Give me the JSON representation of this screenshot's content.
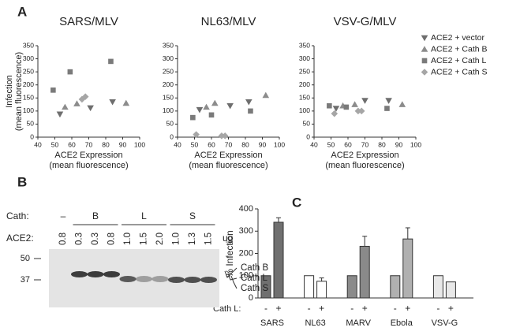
{
  "panel_labels": [
    "A",
    "B",
    "C"
  ],
  "chart_data": [
    {
      "type": "scatter",
      "title": "SARS/MLV",
      "ylabel": [
        "Infection",
        "(mean fluorescence)"
      ],
      "xlabel": [
        "ACE2 Expression",
        "(mean fluorescence)"
      ],
      "xlim": [
        40,
        100
      ],
      "xticks": [
        40,
        50,
        60,
        70,
        80,
        90,
        100
      ],
      "ylim": [
        0,
        350
      ],
      "yticks": [
        0,
        50,
        100,
        150,
        200,
        250,
        300,
        350
      ],
      "series": [
        {
          "name": "ACE2 + vector",
          "marker": "triangle-down",
          "color": "#6e6e6e",
          "x": [
            53,
            71,
            84
          ],
          "y": [
            88,
            112,
            135
          ]
        },
        {
          "name": "ACE2 + Cath B",
          "marker": "triangle-up",
          "color": "#8c8c8c",
          "x": [
            56,
            63,
            92
          ],
          "y": [
            115,
            128,
            130
          ]
        },
        {
          "name": "ACE2 + Cath L",
          "marker": "square",
          "color": "#7a7a7a",
          "x": [
            49,
            59,
            83
          ],
          "y": [
            180,
            250,
            290
          ]
        },
        {
          "name": "ACE2 + Cath S",
          "marker": "diamond",
          "color": "#a6a6a6",
          "x": [
            66,
            68
          ],
          "y": [
            145,
            155
          ]
        }
      ]
    },
    {
      "type": "scatter",
      "title": "NL63/MLV",
      "xlabel": [
        "ACE2 Expression",
        "(mean fluorescence)"
      ],
      "xlim": [
        40,
        100
      ],
      "xticks": [
        40,
        50,
        60,
        70,
        80,
        90,
        100
      ],
      "ylim": [
        0,
        350
      ],
      "yticks": [
        0,
        50,
        100,
        150,
        200,
        250,
        300,
        350
      ],
      "series": [
        {
          "name": "ACE2 + vector",
          "marker": "triangle-down",
          "color": "#6e6e6e",
          "x": [
            53,
            71,
            82
          ],
          "y": [
            105,
            120,
            135
          ]
        },
        {
          "name": "ACE2 + Cath B",
          "marker": "triangle-up",
          "color": "#8c8c8c",
          "x": [
            57,
            62,
            92
          ],
          "y": [
            115,
            130,
            160
          ]
        },
        {
          "name": "ACE2 + Cath L",
          "marker": "square",
          "color": "#7a7a7a",
          "x": [
            49,
            60,
            83
          ],
          "y": [
            75,
            85,
            100
          ]
        },
        {
          "name": "ACE2 + Cath S",
          "marker": "diamond",
          "color": "#a6a6a6",
          "x": [
            51,
            66,
            68
          ],
          "y": [
            10,
            5,
            5
          ]
        }
      ]
    },
    {
      "type": "scatter",
      "title": "VSV-G/MLV",
      "xlabel": [
        "ACE2 Expression",
        "(mean fluorescence)"
      ],
      "legend": "right",
      "xlim": [
        40,
        100
      ],
      "xticks": [
        40,
        50,
        60,
        70,
        80,
        90,
        100
      ],
      "ylim": [
        0,
        350
      ],
      "yticks": [
        0,
        50,
        100,
        150,
        200,
        250,
        300,
        350
      ],
      "series": [
        {
          "name": "ACE2 + vector",
          "marker": "triangle-down",
          "color": "#6e6e6e",
          "x": [
            53,
            70,
            84
          ],
          "y": [
            110,
            140,
            140
          ]
        },
        {
          "name": "ACE2 + Cath B",
          "marker": "triangle-up",
          "color": "#8c8c8c",
          "x": [
            57,
            64,
            92
          ],
          "y": [
            120,
            125,
            125
          ]
        },
        {
          "name": "ACE2 + Cath L",
          "marker": "square",
          "color": "#7a7a7a",
          "x": [
            49,
            59,
            83
          ],
          "y": [
            120,
            115,
            110
          ]
        },
        {
          "name": "ACE2 + Cath S",
          "marker": "diamond",
          "color": "#a6a6a6",
          "x": [
            52,
            66,
            68
          ],
          "y": [
            90,
            100,
            100
          ]
        }
      ]
    },
    {
      "type": "bar",
      "ylabel": "% Infection",
      "xlabel": "Cath L:",
      "categories": [
        "SARS",
        "NL63",
        "MARV",
        "Ebola",
        "VSV-G"
      ],
      "colors": [
        "#707070",
        "#ffffff",
        "#8a8a8a",
        "#b0b0b0",
        "#e8e8e8"
      ],
      "ylim": [
        0,
        400
      ],
      "yticks": [
        0,
        100,
        200,
        300,
        400
      ],
      "series": [
        {
          "name": "-",
          "values": [
            100,
            100,
            100,
            100,
            100
          ]
        },
        {
          "name": "+",
          "values": [
            340,
            75,
            232,
            265,
            72
          ],
          "errors": [
            20,
            15,
            45,
            50,
            null
          ]
        }
      ]
    }
  ],
  "blot": {
    "cath_label": "Cath:",
    "ace2_label": "ACE2:",
    "unit": "ug",
    "groups": [
      {
        "label": "–",
        "lanes": [
          "0.8"
        ]
      },
      {
        "label": "B",
        "lanes": [
          "0.3",
          "0.3",
          "0.8"
        ]
      },
      {
        "label": "L",
        "lanes": [
          "1.0",
          "1.5",
          "2.0"
        ]
      },
      {
        "label": "S",
        "lanes": [
          "1.0",
          "1.3",
          "1.5"
        ]
      }
    ],
    "markers": [
      "50",
      "37"
    ],
    "bands": [
      "Cath B",
      "Cath L",
      "Cath S"
    ]
  }
}
